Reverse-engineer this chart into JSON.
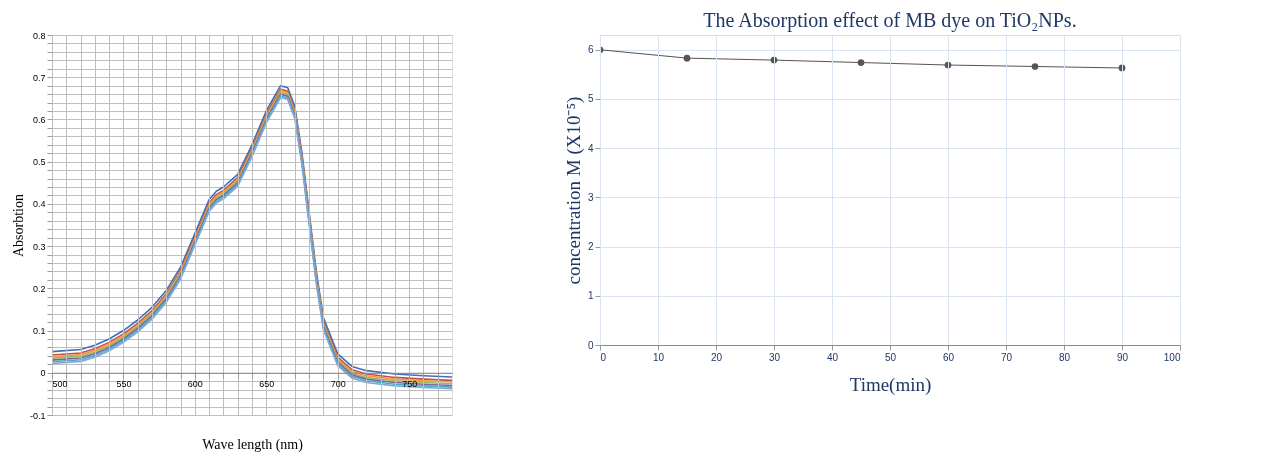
{
  "chart_data": [
    {
      "type": "line",
      "xlabel": "Wave length (nm)",
      "ylabel": "Absorbtion",
      "grid": true,
      "legend": false,
      "x": [
        500,
        520,
        530,
        540,
        550,
        560,
        570,
        580,
        590,
        600,
        610,
        615,
        620,
        630,
        640,
        650,
        660,
        665,
        670,
        675,
        680,
        685,
        690,
        700,
        710,
        720,
        740,
        760,
        780
      ],
      "xlim": [
        500,
        780
      ],
      "xticks": [
        500,
        {
          "value": 510,
          "label": null
        },
        {
          "value": 520,
          "label": null
        },
        {
          "value": 530,
          "label": null
        },
        {
          "value": 540,
          "label": null
        },
        550,
        {
          "value": 560,
          "label": null
        },
        {
          "value": 570,
          "label": null
        },
        {
          "value": 580,
          "label": null
        },
        {
          "value": 590,
          "label": null
        },
        600,
        {
          "value": 610,
          "label": null
        },
        {
          "value": 620,
          "label": null
        },
        {
          "value": 630,
          "label": null
        },
        {
          "value": 640,
          "label": null
        },
        650,
        {
          "value": 660,
          "label": null
        },
        {
          "value": 670,
          "label": null
        },
        {
          "value": 680,
          "label": null
        },
        {
          "value": 690,
          "label": null
        },
        700,
        {
          "value": 710,
          "label": null
        },
        {
          "value": 720,
          "label": null
        },
        {
          "value": 730,
          "label": null
        },
        {
          "value": 740,
          "label": null
        },
        750,
        {
          "value": 760,
          "label": null
        },
        {
          "value": 770,
          "label": null
        }
      ],
      "ylim": [
        -0.1,
        0.8
      ],
      "yticks": [
        -0.1,
        {
          "value": -0.08,
          "label": null
        },
        {
          "value": -0.06,
          "label": null
        },
        {
          "value": -0.04,
          "label": null
        },
        {
          "value": -0.02,
          "label": null
        },
        0,
        {
          "value": 0.02,
          "label": null
        },
        {
          "value": 0.04,
          "label": null
        },
        {
          "value": 0.06,
          "label": null
        },
        {
          "value": 0.08,
          "label": null
        },
        0.1,
        {
          "value": 0.12,
          "label": null
        },
        {
          "value": 0.14,
          "label": null
        },
        {
          "value": 0.16,
          "label": null
        },
        {
          "value": 0.18,
          "label": null
        },
        0.2,
        {
          "value": 0.22,
          "label": null
        },
        {
          "value": 0.24,
          "label": null
        },
        {
          "value": 0.26,
          "label": null
        },
        {
          "value": 0.28,
          "label": null
        },
        0.3,
        {
          "value": 0.32,
          "label": null
        },
        {
          "value": 0.34,
          "label": null
        },
        {
          "value": 0.36,
          "label": null
        },
        {
          "value": 0.38,
          "label": null
        },
        0.4,
        {
          "value": 0.42,
          "label": null
        },
        {
          "value": 0.44,
          "label": null
        },
        {
          "value": 0.46,
          "label": null
        },
        {
          "value": 0.48,
          "label": null
        },
        0.5,
        {
          "value": 0.52,
          "label": null
        },
        {
          "value": 0.54,
          "label": null
        },
        {
          "value": 0.56,
          "label": null
        },
        {
          "value": 0.58,
          "label": null
        },
        0.6,
        {
          "value": 0.62,
          "label": null
        },
        {
          "value": 0.64,
          "label": null
        },
        {
          "value": 0.66,
          "label": null
        },
        {
          "value": 0.68,
          "label": null
        },
        0.7,
        {
          "value": 0.72,
          "label": null
        },
        {
          "value": 0.74,
          "label": null
        },
        {
          "value": 0.76,
          "label": null
        },
        {
          "value": 0.78,
          "label": null
        },
        0.8
      ],
      "series": [
        {
          "color": "#3f6fb5",
          "values": [
            0.05,
            0.055,
            0.065,
            0.08,
            0.1,
            0.125,
            0.155,
            0.195,
            0.25,
            0.33,
            0.41,
            0.43,
            0.44,
            0.47,
            0.54,
            0.62,
            0.68,
            0.675,
            0.63,
            0.52,
            0.38,
            0.24,
            0.13,
            0.045,
            0.015,
            0.005,
            -0.003,
            -0.007,
            -0.01
          ]
        },
        {
          "color": "#c0504d",
          "values": [
            0.042,
            0.047,
            0.057,
            0.072,
            0.092,
            0.117,
            0.147,
            0.187,
            0.242,
            0.322,
            0.402,
            0.422,
            0.432,
            0.462,
            0.532,
            0.612,
            0.672,
            0.667,
            0.622,
            0.512,
            0.372,
            0.232,
            0.122,
            0.037,
            0.007,
            -0.003,
            -0.011,
            -0.015,
            -0.018
          ]
        },
        {
          "color": "#f79646",
          "values": [
            0.038,
            0.043,
            0.053,
            0.068,
            0.088,
            0.113,
            0.143,
            0.183,
            0.238,
            0.318,
            0.398,
            0.418,
            0.428,
            0.458,
            0.528,
            0.608,
            0.668,
            0.663,
            0.618,
            0.508,
            0.368,
            0.228,
            0.118,
            0.033,
            0.003,
            -0.007,
            -0.015,
            -0.019,
            -0.022
          ]
        },
        {
          "color": "#9bbb59",
          "values": [
            0.034,
            0.039,
            0.049,
            0.064,
            0.084,
            0.109,
            0.139,
            0.179,
            0.234,
            0.314,
            0.394,
            0.414,
            0.424,
            0.454,
            0.524,
            0.604,
            0.664,
            0.659,
            0.614,
            0.504,
            0.364,
            0.224,
            0.114,
            0.029,
            -0.001,
            -0.011,
            -0.019,
            -0.023,
            -0.026
          ]
        },
        {
          "color": "#8064a2",
          "values": [
            0.03,
            0.035,
            0.045,
            0.06,
            0.08,
            0.105,
            0.135,
            0.175,
            0.23,
            0.31,
            0.39,
            0.41,
            0.42,
            0.45,
            0.52,
            0.6,
            0.66,
            0.655,
            0.61,
            0.5,
            0.36,
            0.22,
            0.11,
            0.025,
            -0.005,
            -0.015,
            -0.023,
            -0.027,
            -0.03
          ]
        },
        {
          "color": "#4bacc6",
          "values": [
            0.026,
            0.031,
            0.041,
            0.056,
            0.076,
            0.101,
            0.131,
            0.171,
            0.226,
            0.306,
            0.386,
            0.406,
            0.416,
            0.446,
            0.516,
            0.596,
            0.656,
            0.651,
            0.606,
            0.496,
            0.356,
            0.216,
            0.106,
            0.021,
            -0.009,
            -0.019,
            -0.027,
            -0.031,
            -0.034
          ]
        },
        {
          "color": "#7fa7d9",
          "values": [
            0.022,
            0.027,
            0.037,
            0.052,
            0.072,
            0.097,
            0.127,
            0.167,
            0.222,
            0.302,
            0.382,
            0.402,
            0.412,
            0.442,
            0.512,
            0.592,
            0.652,
            0.647,
            0.602,
            0.492,
            0.352,
            0.212,
            0.102,
            0.017,
            -0.013,
            -0.023,
            -0.031,
            -0.035,
            -0.038
          ]
        }
      ]
    },
    {
      "type": "line",
      "title": "The Absorption effect of MB dye on TiO₂NPs.",
      "xlabel": "Time(min)",
      "ylabel": "concentration M (X10⁻⁵)",
      "grid": true,
      "legend": false,
      "marker": "circle",
      "x": [
        0,
        15,
        30,
        45,
        60,
        75,
        90
      ],
      "xlim": [
        0,
        100
      ],
      "xticks": [
        0,
        10,
        20,
        30,
        40,
        50,
        60,
        70,
        80,
        90,
        100
      ],
      "ylim": [
        0,
        6.3
      ],
      "yticks": [
        0,
        1,
        2,
        3,
        4,
        5,
        6
      ],
      "series": [
        {
          "color": "#555555",
          "values": [
            6.0,
            5.83,
            5.79,
            5.74,
            5.69,
            5.66,
            5.63
          ]
        }
      ]
    }
  ]
}
